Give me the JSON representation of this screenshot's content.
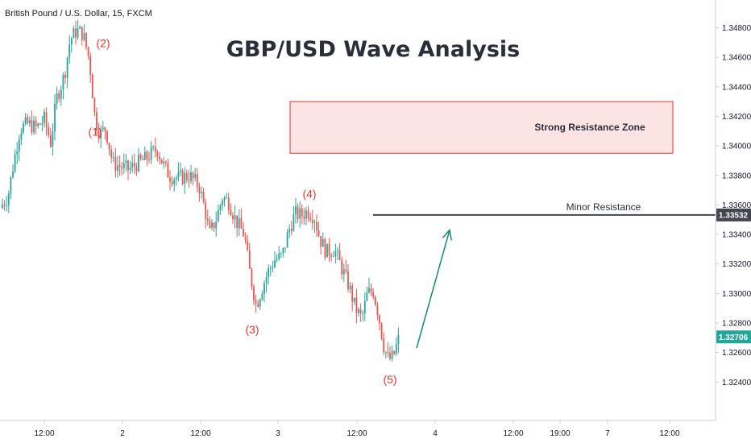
{
  "header": {
    "symbol": "British Pound / U.S. Dollar, 15, FXCM",
    "title": "GBP/USD Wave Analysis"
  },
  "colors": {
    "up": "#26a69a",
    "down": "#ef5350",
    "wave_label": "#e8362e",
    "zone_fill": "#fde4e4",
    "zone_border": "#e8362e",
    "resistance_line": "#434651",
    "arrow": "#138a6d",
    "price_tag": "#26a69a",
    "resistance_tag": "#434651"
  },
  "chart_data": {
    "type": "candlestick",
    "title": "GBP/USD Wave Analysis",
    "symbol": "British Pound / U.S. Dollar, 15, FXCM",
    "y_ticks": [
      1.348,
      1.346,
      1.344,
      1.342,
      1.34,
      1.338,
      1.336,
      1.334,
      1.332,
      1.33,
      1.328,
      1.326,
      1.324
    ],
    "y_tick_labels": [
      "1.34800",
      "1.34600",
      "1.34400",
      "1.34200",
      "1.34000",
      "1.33800",
      "1.33600",
      "1.33400",
      "1.33200",
      "1.33000",
      "1.32800",
      "1.32600",
      "1.32400"
    ],
    "ylim": [
      1.3226,
      1.3495
    ],
    "x_ticks": [
      "12:00",
      "2",
      "12:00",
      "3",
      "12:00",
      "4",
      "12:00",
      "19:00",
      "7",
      "12:00"
    ],
    "current_price": 1.32706,
    "current_price_label": "1.32706",
    "price_path": [
      [
        0,
        1.3358
      ],
      [
        10,
        1.3366
      ],
      [
        18,
        1.3392
      ],
      [
        25,
        1.3412
      ],
      [
        35,
        1.3415
      ],
      [
        45,
        1.3412
      ],
      [
        55,
        1.3418
      ],
      [
        63,
        1.3402
      ],
      [
        70,
        1.3432
      ],
      [
        80,
        1.3448
      ],
      [
        87,
        1.3472
      ],
      [
        95,
        1.3478
      ],
      [
        103,
        1.3476
      ],
      [
        111,
        1.3458
      ],
      [
        118,
        1.3418
      ],
      [
        124,
        1.3408
      ],
      [
        131,
        1.3412
      ],
      [
        140,
        1.3388
      ],
      [
        150,
        1.3386
      ],
      [
        160,
        1.3384
      ],
      [
        170,
        1.3388
      ],
      [
        180,
        1.3391
      ],
      [
        195,
        1.3398
      ],
      [
        202,
        1.3388
      ],
      [
        210,
        1.338
      ],
      [
        222,
        1.3378
      ],
      [
        235,
        1.338
      ],
      [
        247,
        1.3373
      ],
      [
        255,
        1.3355
      ],
      [
        260,
        1.334
      ],
      [
        268,
        1.335
      ],
      [
        276,
        1.3365
      ],
      [
        284,
        1.3362
      ],
      [
        293,
        1.3349
      ],
      [
        303,
        1.334
      ],
      [
        310,
        1.3314
      ],
      [
        318,
        1.3292
      ],
      [
        326,
        1.3305
      ],
      [
        333,
        1.3315
      ],
      [
        341,
        1.3323
      ],
      [
        350,
        1.3325
      ],
      [
        358,
        1.3342
      ],
      [
        366,
        1.3354
      ],
      [
        374,
        1.3353
      ],
      [
        382,
        1.3356
      ],
      [
        390,
        1.3352
      ],
      [
        397,
        1.3337
      ],
      [
        405,
        1.3328
      ],
      [
        415,
        1.333
      ],
      [
        425,
        1.3316
      ],
      [
        433,
        1.3305
      ],
      [
        441,
        1.329
      ],
      [
        449,
        1.3283
      ],
      [
        456,
        1.33
      ],
      [
        463,
        1.3302
      ],
      [
        470,
        1.3285
      ],
      [
        476,
        1.3265
      ],
      [
        482,
        1.3255
      ],
      [
        488,
        1.3257
      ],
      [
        495,
        1.327
      ]
    ],
    "wave_labels": [
      {
        "label": "(1)",
        "x": 118,
        "price": 1.3407
      },
      {
        "label": "(2)",
        "x": 128,
        "price": 1.3467
      },
      {
        "label": "(3)",
        "x": 313,
        "price": 1.3273
      },
      {
        "label": "(4)",
        "x": 384,
        "price": 1.3365
      },
      {
        "label": "(5)",
        "x": 484,
        "price": 1.3239
      }
    ],
    "resistance_zone": {
      "label": "Strong Resistance Zone",
      "high": 1.343,
      "low": 1.3395
    },
    "minor_resistance": {
      "label": "Minor Resistance",
      "price": 1.33532,
      "price_label": "1.33532"
    },
    "projection_arrow": {
      "from": 1.3263,
      "to": 1.3343
    }
  }
}
